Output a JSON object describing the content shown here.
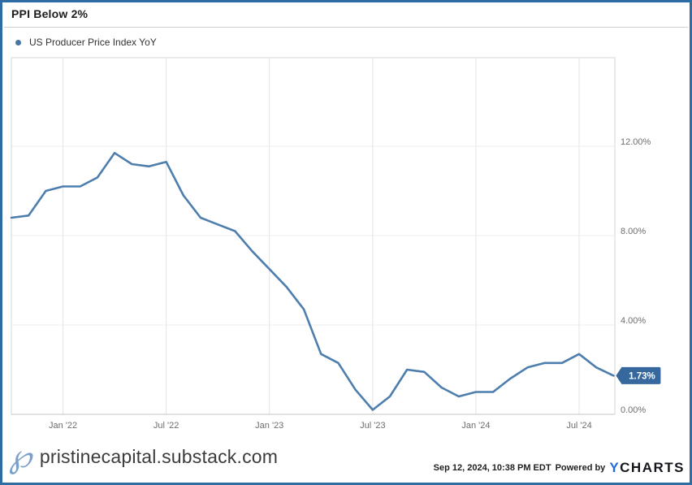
{
  "header": {
    "title": "PPI Below 2%"
  },
  "legend": {
    "series_label": "US Producer Price Index YoY",
    "dot_color": "#4677a4"
  },
  "chart_data": {
    "type": "line",
    "title": "PPI Below 2%",
    "xlabel": "",
    "ylabel": "",
    "grid": true,
    "legend_position": "top-left",
    "ylim": [
      -0.4,
      15.9
    ],
    "months": [
      "Sep 2021",
      "Oct 2021",
      "Nov 2021",
      "Dec 2021",
      "Jan 2022",
      "Feb 2022",
      "Mar 2022",
      "Apr 2022",
      "May 2022",
      "Jun 2022",
      "Jul 2022",
      "Aug 2022",
      "Sep 2022",
      "Oct 2022",
      "Nov 2022",
      "Dec 2022",
      "Jan 2023",
      "Feb 2023",
      "Mar 2023",
      "Apr 2023",
      "May 2023",
      "Jun 2023",
      "Jul 2023",
      "Aug 2023",
      "Sep 2023",
      "Oct 2023",
      "Nov 2023",
      "Dec 2023",
      "Jan 2024",
      "Feb 2024",
      "Mar 2024",
      "Apr 2024",
      "May 2024",
      "Jun 2024",
      "Jul 2024",
      "Aug 2024"
    ],
    "series": [
      {
        "name": "US Producer Price Index YoY",
        "values": [
          8.8,
          8.9,
          10.0,
          10.2,
          10.2,
          10.6,
          11.7,
          11.2,
          11.1,
          11.3,
          9.8,
          8.8,
          8.5,
          8.2,
          7.3,
          6.5,
          5.7,
          4.7,
          2.7,
          2.3,
          1.1,
          0.2,
          0.8,
          2.0,
          1.9,
          1.2,
          0.8,
          1.0,
          1.0,
          1.6,
          2.1,
          2.3,
          2.3,
          2.7,
          2.1,
          1.73
        ]
      }
    ],
    "x_ticks": [
      {
        "label": "Jan '22",
        "index": 3
      },
      {
        "label": "Jul '22",
        "index": 9
      },
      {
        "label": "Jan '23",
        "index": 15
      },
      {
        "label": "Jul '23",
        "index": 21
      },
      {
        "label": "Jan '24",
        "index": 27
      },
      {
        "label": "Jul '24",
        "index": 33
      }
    ],
    "y_ticks": [
      {
        "label": "12.00%",
        "value": 12
      },
      {
        "label": "8.00%",
        "value": 8
      },
      {
        "label": "4.00%",
        "value": 4
      },
      {
        "label": "0.00%",
        "value": 0
      }
    ],
    "line_color": "#4d7ead",
    "last_value_badge": {
      "label": "1.73%",
      "color": "#36689e",
      "text_color": "#ffffff"
    }
  },
  "footer": {
    "logo_glyph": "℘",
    "site": "pristinecapital.substack.com",
    "timestamp": "Sep 12, 2024, 10:38 PM EDT",
    "powered_by": "Powered by",
    "brand_part1": "Y",
    "brand_part2": "CHARTS"
  }
}
